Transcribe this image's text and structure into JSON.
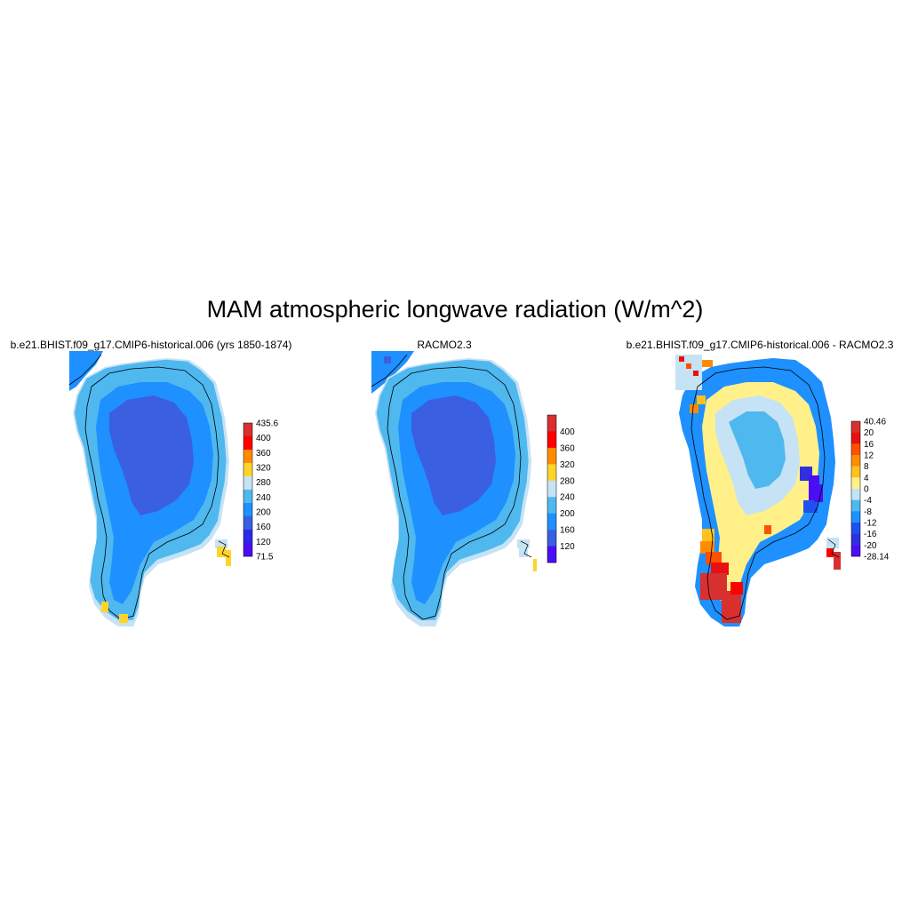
{
  "title": "MAM atmospheric longwave radiation (W/m^2)",
  "panels": [
    {
      "title": "b.e21.BHIST.f09_g17.CMIP6-historical.006 (yrs 1850-1874)",
      "colorbar": {
        "labels": [
          "435.6",
          "400",
          "360",
          "320",
          "280",
          "240",
          "200",
          "160",
          "120",
          "71.5"
        ],
        "colors": [
          "#d7302f",
          "#ff0000",
          "#ff8c00",
          "#ffd42a",
          "#c6e2f5",
          "#4fb8ef",
          "#1e90ff",
          "#3a5fe0",
          "#2a2ae8",
          "#4b0ef2"
        ]
      }
    },
    {
      "title": "RACMO2.3",
      "colorbar": {
        "labels": [
          "400",
          "360",
          "320",
          "280",
          "240",
          "200",
          "160",
          "120"
        ],
        "colors": [
          "#d7302f",
          "#ff0000",
          "#ff8c00",
          "#ffd42a",
          "#c6e2f5",
          "#4fb8ef",
          "#1e90ff",
          "#3a5fe0",
          "#4b0ef2"
        ]
      }
    },
    {
      "title": "b.e21.BHIST.f09_g17.CMIP6-historical.006 - RACMO2.3",
      "colorbar": {
        "labels": [
          "40.46",
          "20",
          "16",
          "12",
          "8",
          "4",
          "0",
          "-4",
          "-8",
          "-12",
          "-16",
          "-20",
          "-28.14"
        ],
        "colors": [
          "#d7302f",
          "#e81010",
          "#ff5000",
          "#ff8c00",
          "#ffc020",
          "#fff08a",
          "#c6e2f5",
          "#4fb8ef",
          "#1e90ff",
          "#1e50f0",
          "#3030e0",
          "#4b0ef2"
        ]
      }
    }
  ],
  "legend_colors": {
    "ice_interior": "#3a5fe0",
    "mid": "#1e90ff",
    "margin": "#4fb8ef",
    "edge": "#c6e2f5",
    "warm": "#ffd42a"
  }
}
